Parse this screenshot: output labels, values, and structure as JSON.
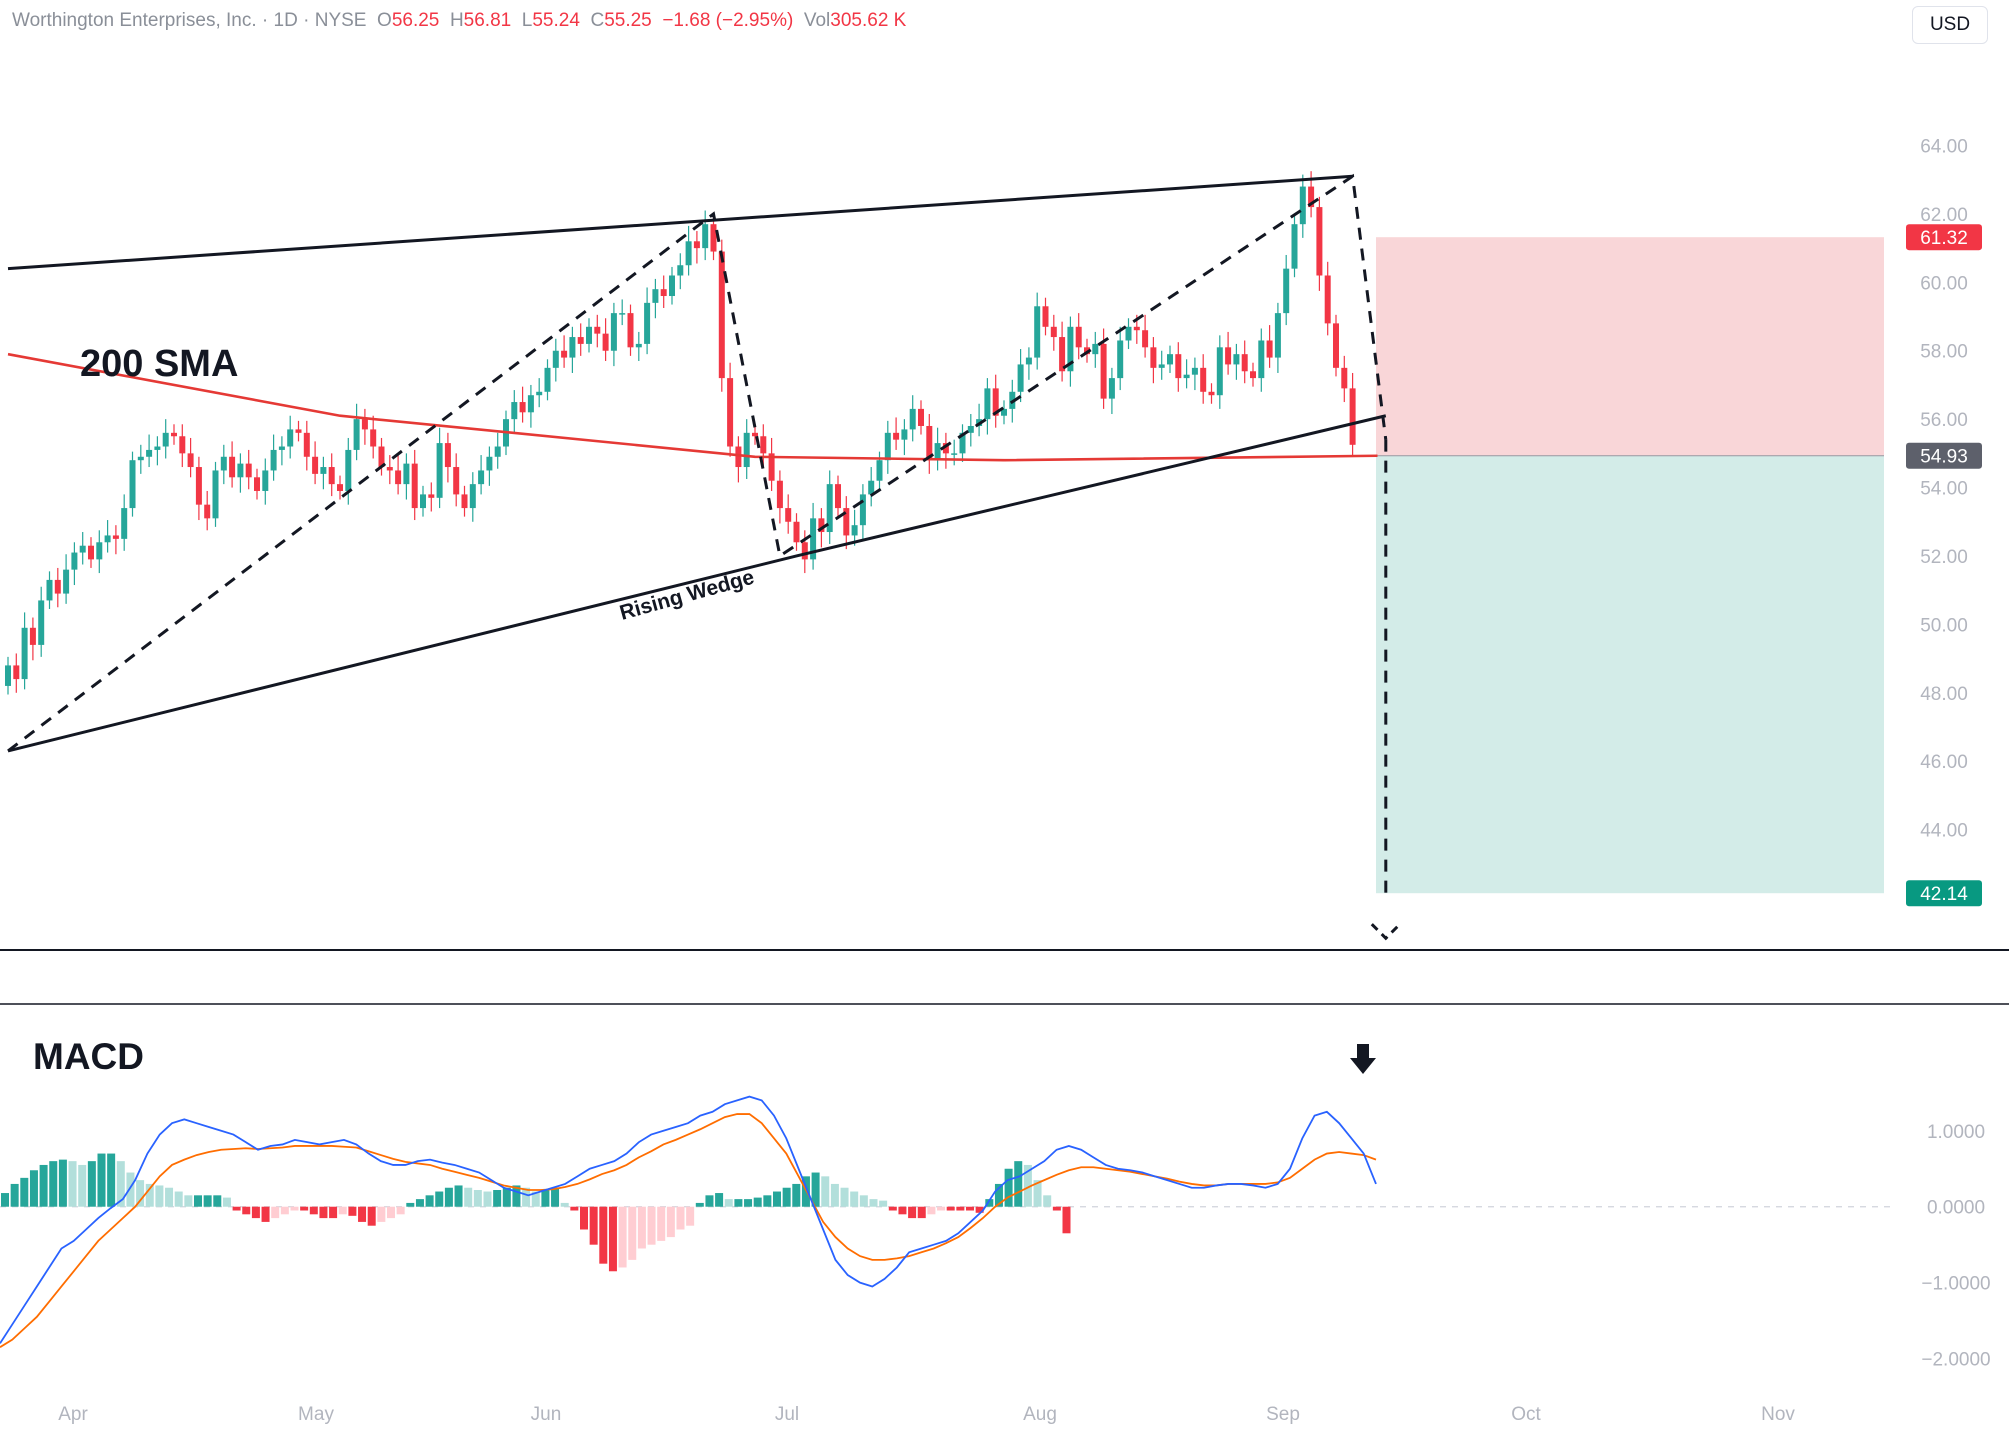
{
  "header": {
    "name": "Worthington Enterprises, Inc.",
    "sep1": " · ",
    "interval": "1D",
    "sep2": " · ",
    "exchange": "NYSE",
    "o_label": "O",
    "o_value": "56.25",
    "h_label": "H",
    "h_value": "56.81",
    "l_label": "L",
    "l_value": "55.24",
    "c_label": "C",
    "c_value": "55.25",
    "change": "−1.68 (−2.95%)",
    "vol_label": "Vol",
    "vol_value": "305.62 K"
  },
  "currency_button": "USD",
  "annotations": {
    "sma_label": "200 SMA",
    "pattern_label": "Rising Wedge",
    "macd_label": "MACD"
  },
  "colors": {
    "up": "#26a69a",
    "down": "#f23645",
    "up_light": "#b2dfdb",
    "down_light": "#ffcdd2",
    "sma": "#e53935",
    "macd_line": "#2962ff",
    "signal_line": "#ff6d00",
    "stop_zone": "#f9d6d8",
    "target_zone": "#d3ece8",
    "entry_tag": "#5d606b",
    "axis_text": "#b2b5be"
  },
  "chart_data": [
    {
      "type": "candlestick",
      "title": "Worthington Enterprises, Inc. · 1D · NYSE",
      "x_axis_months": [
        "Apr",
        "May",
        "Jun",
        "Jul",
        "Aug",
        "Sep",
        "Oct",
        "Nov"
      ],
      "y_ticks": [
        "64.00",
        "62.00",
        "60.00",
        "58.00",
        "56.00",
        "54.00",
        "52.00",
        "50.00",
        "48.00",
        "46.00",
        "44.00"
      ],
      "ylim": [
        42.0,
        64.6
      ],
      "price_tags": {
        "stop_loss": "61.32",
        "entry": "54.93",
        "target": "42.14"
      },
      "closes": [
        48.8,
        48.4,
        49.9,
        49.4,
        50.7,
        51.3,
        50.9,
        51.6,
        52.1,
        52.3,
        51.9,
        52.4,
        52.6,
        52.5,
        53.4,
        54.8,
        54.9,
        55.1,
        55.2,
        55.6,
        55.5,
        55.0,
        54.6,
        53.5,
        53.1,
        54.5,
        54.9,
        54.3,
        54.7,
        54.3,
        53.9,
        54.5,
        55.1,
        55.2,
        55.7,
        55.6,
        54.9,
        54.4,
        54.6,
        54.1,
        53.9,
        55.1,
        56.0,
        55.7,
        55.2,
        54.6,
        54.5,
        54.1,
        54.7,
        53.4,
        53.8,
        53.7,
        55.3,
        54.6,
        53.8,
        53.4,
        54.1,
        54.5,
        54.9,
        55.2,
        56.0,
        56.5,
        56.2,
        56.7,
        56.8,
        57.5,
        58.0,
        57.8,
        58.4,
        58.2,
        58.7,
        58.5,
        58.0,
        59.1,
        59.1,
        58.1,
        58.2,
        59.4,
        59.8,
        59.6,
        60.2,
        60.5,
        61.2,
        61.0,
        61.7,
        60.9,
        57.2,
        55.2,
        54.6,
        55.6,
        55.5,
        55.0,
        54.2,
        53.4,
        53.0,
        52.4,
        51.9,
        53.1,
        52.7,
        54.1,
        53.4,
        52.6,
        52.9,
        53.8,
        54.2,
        54.8,
        55.6,
        55.4,
        55.7,
        56.3,
        55.8,
        54.8,
        55.3,
        55.0,
        55.0,
        55.6,
        55.8,
        56.0,
        56.9,
        56.1,
        56.3,
        56.8,
        57.6,
        57.8,
        59.3,
        58.7,
        58.4,
        57.4,
        58.7,
        58.1,
        57.9,
        58.2,
        56.6,
        57.2,
        58.3,
        58.7,
        58.6,
        58.1,
        57.5,
        57.6,
        57.9,
        57.2,
        57.3,
        57.5,
        56.8,
        56.7,
        58.1,
        57.6,
        57.9,
        57.4,
        57.2,
        58.3,
        57.8,
        59.1,
        60.4,
        61.7,
        62.8,
        62.2,
        60.2,
        58.8,
        57.5,
        56.9,
        55.25
      ],
      "sma200_points": [
        [
          0,
          57.9
        ],
        [
          40,
          56.1
        ],
        [
          90,
          54.9
        ],
        [
          120,
          54.8
        ],
        [
          165,
          54.93
        ]
      ],
      "wedge_upper": [
        [
          0,
          60.4
        ],
        [
          162,
          63.1
        ]
      ],
      "wedge_lower": [
        [
          0,
          46.3
        ],
        [
          95,
          52.0
        ],
        [
          166,
          56.1
        ]
      ],
      "zigzag": [
        [
          0,
          46.3
        ],
        [
          85,
          62.0
        ],
        [
          93,
          52.0
        ],
        [
          162,
          63.1
        ],
        [
          166,
          55.4
        ]
      ],
      "projection": [
        [
          166,
          55.4
        ],
        [
          166,
          42.14
        ]
      ]
    },
    {
      "type": "macd",
      "title": "MACD",
      "y_ticks": [
        "1.0000",
        "0.0000",
        "−1.0000",
        "−2.0000"
      ],
      "ylim": [
        -2.15,
        1.55
      ],
      "macd_line": [
        -1.8,
        -1.55,
        -1.3,
        -1.05,
        -0.8,
        -0.55,
        -0.45,
        -0.3,
        -0.15,
        -0.02,
        0.1,
        0.35,
        0.7,
        0.95,
        1.1,
        1.15,
        1.1,
        1.05,
        1.0,
        0.95,
        0.85,
        0.75,
        0.8,
        0.82,
        0.88,
        0.85,
        0.82,
        0.85,
        0.88,
        0.82,
        0.7,
        0.6,
        0.55,
        0.55,
        0.6,
        0.62,
        0.58,
        0.55,
        0.5,
        0.45,
        0.35,
        0.25,
        0.2,
        0.15,
        0.2,
        0.25,
        0.3,
        0.4,
        0.5,
        0.55,
        0.6,
        0.7,
        0.85,
        0.95,
        1.0,
        1.05,
        1.1,
        1.2,
        1.25,
        1.35,
        1.4,
        1.45,
        1.4,
        1.2,
        0.9,
        0.5,
        0.1,
        -0.3,
        -0.7,
        -0.9,
        -1.0,
        -1.05,
        -0.95,
        -0.8,
        -0.6,
        -0.55,
        -0.5,
        -0.45,
        -0.35,
        -0.2,
        -0.05,
        0.2,
        0.35,
        0.4,
        0.5,
        0.6,
        0.75,
        0.8,
        0.75,
        0.65,
        0.55,
        0.5,
        0.48,
        0.45,
        0.4,
        0.35,
        0.3,
        0.25,
        0.25,
        0.28,
        0.3,
        0.3,
        0.28,
        0.25,
        0.3,
        0.5,
        0.9,
        1.2,
        1.25,
        1.1,
        0.9,
        0.7,
        0.3
      ],
      "signal_line": [
        -1.85,
        -1.75,
        -1.6,
        -1.45,
        -1.25,
        -1.05,
        -0.85,
        -0.65,
        -0.45,
        -0.3,
        -0.15,
        0.0,
        0.2,
        0.4,
        0.55,
        0.62,
        0.68,
        0.72,
        0.75,
        0.76,
        0.77,
        0.76,
        0.77,
        0.78,
        0.8,
        0.8,
        0.8,
        0.8,
        0.79,
        0.78,
        0.73,
        0.68,
        0.63,
        0.59,
        0.57,
        0.55,
        0.5,
        0.46,
        0.42,
        0.38,
        0.33,
        0.28,
        0.25,
        0.22,
        0.22,
        0.23,
        0.26,
        0.3,
        0.36,
        0.43,
        0.48,
        0.55,
        0.65,
        0.73,
        0.82,
        0.88,
        0.95,
        1.02,
        1.1,
        1.18,
        1.22,
        1.22,
        1.1,
        0.9,
        0.7,
        0.4,
        0.1,
        -0.2,
        -0.4,
        -0.55,
        -0.65,
        -0.7,
        -0.7,
        -0.68,
        -0.65,
        -0.6,
        -0.55,
        -0.48,
        -0.4,
        -0.28,
        -0.15,
        0.0,
        0.12,
        0.2,
        0.28,
        0.35,
        0.42,
        0.48,
        0.52,
        0.52,
        0.5,
        0.48,
        0.46,
        0.43,
        0.4,
        0.37,
        0.33,
        0.3,
        0.28,
        0.28,
        0.3,
        0.3,
        0.3,
        0.3,
        0.32,
        0.38,
        0.5,
        0.62,
        0.7,
        0.72,
        0.7,
        0.68,
        0.62
      ],
      "histogram": [
        0.18,
        0.3,
        0.38,
        0.48,
        0.55,
        0.6,
        0.62,
        0.6,
        0.55,
        0.6,
        0.7,
        0.7,
        0.6,
        0.45,
        0.35,
        0.3,
        0.28,
        0.25,
        0.2,
        0.15,
        0.15,
        0.15,
        0.15,
        0.12,
        -0.05,
        -0.1,
        -0.15,
        -0.2,
        -0.15,
        -0.1,
        -0.05,
        -0.05,
        -0.1,
        -0.15,
        -0.15,
        -0.1,
        -0.12,
        -0.2,
        -0.25,
        -0.2,
        -0.15,
        -0.1,
        0.05,
        0.1,
        0.15,
        0.2,
        0.25,
        0.28,
        0.25,
        0.22,
        0.2,
        0.22,
        0.25,
        0.28,
        0.25,
        0.2,
        0.22,
        0.25,
        0.05,
        -0.05,
        -0.3,
        -0.5,
        -0.75,
        -0.85,
        -0.8,
        -0.7,
        -0.55,
        -0.5,
        -0.45,
        -0.4,
        -0.3,
        -0.25,
        0.05,
        0.15,
        0.18,
        0.1,
        0.1,
        0.1,
        0.12,
        0.15,
        0.2,
        0.25,
        0.3,
        0.4,
        0.45,
        0.4,
        0.3,
        0.25,
        0.2,
        0.15,
        0.1,
        0.08,
        -0.05,
        -0.1,
        -0.15,
        -0.15,
        -0.1,
        -0.05,
        -0.05,
        -0.05,
        -0.05,
        -0.08,
        0.1,
        0.3,
        0.5,
        0.6,
        0.55,
        0.35,
        0.15,
        -0.05,
        -0.35
      ]
    }
  ]
}
